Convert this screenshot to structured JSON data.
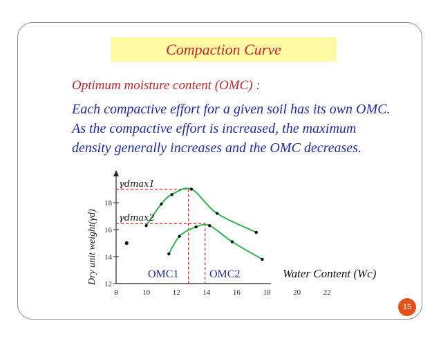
{
  "title": "Compaction Curve",
  "subheading": "Optimum moisture content (OMC) :",
  "body": {
    "line1": "Each compactive effort for a given soil has its own OMC.",
    "line2": "As the compactive effort is increased, the maximum",
    "line3": "density generally increases and the OMC decreases."
  },
  "page_number": "15",
  "colors": {
    "title_text": "#c0252a",
    "title_background": "#fff9a3",
    "body_text": "#1f2a9e",
    "curve": "#2db34a",
    "dashed_guides": "#e0262a",
    "page_badge": "#e2541c"
  },
  "chart_data": {
    "type": "line",
    "xlabel": "Water Content (Wc)",
    "ylabel": "Dry unit weight(γd)",
    "x_ticks": [
      "8",
      "10",
      "12",
      "14",
      "16",
      "18",
      "20",
      "22"
    ],
    "y_ticks": [
      "12",
      "14",
      "16",
      "18"
    ],
    "xlim": [
      8,
      22
    ],
    "ylim": [
      12,
      19.5
    ],
    "series": [
      {
        "points": [
          [
            10.0,
            16.3
          ],
          [
            11.0,
            17.9
          ],
          [
            11.7,
            18.6
          ],
          [
            13.0,
            19.0
          ],
          [
            14.7,
            17.2
          ],
          [
            17.3,
            15.8
          ]
        ],
        "peak": [
          12.8,
          19.0
        ]
      },
      {
        "points": [
          [
            11.5,
            14.2
          ],
          [
            12.2,
            15.5
          ],
          [
            13.3,
            16.2
          ],
          [
            14.2,
            16.3
          ],
          [
            15.7,
            15.1
          ],
          [
            17.7,
            13.8
          ]
        ],
        "peak": [
          13.9,
          16.45
        ]
      }
    ],
    "annotations": {
      "gamma1": "γdmax1",
      "gamma2": "γdmax2",
      "omc1": "OMC1",
      "omc2": "OMC2",
      "stray_point": [
        8.7,
        15.0
      ]
    }
  }
}
